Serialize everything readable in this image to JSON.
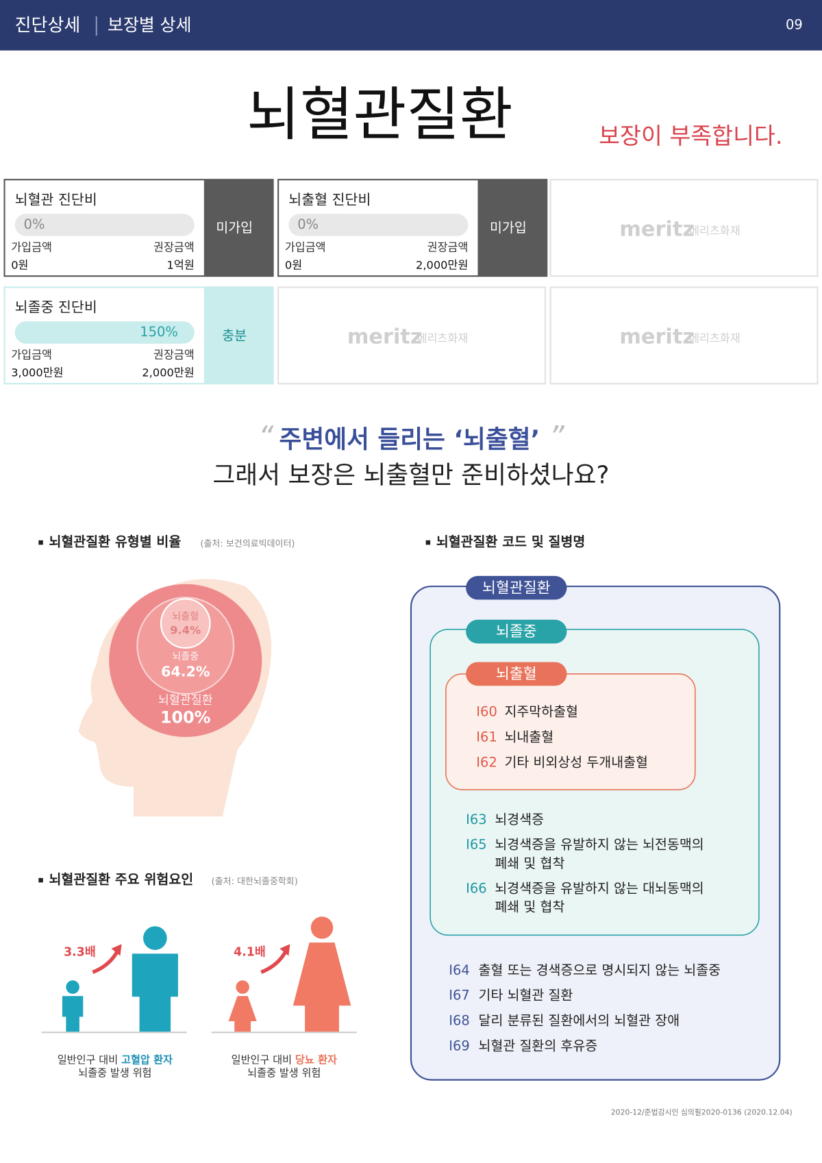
{
  "header": {
    "section": "진단상세",
    "subsection": "보장별 상세",
    "page": "09"
  },
  "title": "뇌혈관질환",
  "status": "보장이 부족합니다.",
  "brand": {
    "name": "meritz",
    "sub": "메리츠화재"
  },
  "cards": [
    {
      "name": "뇌혈관 진단비",
      "percent": "0%",
      "joined_label": "가입금액",
      "recommended_label": "권장금액",
      "joined": "0원",
      "recommended": "1억원",
      "badge": "미가입"
    },
    {
      "name": "뇌출혈 진단비",
      "percent": "0%",
      "joined_label": "가입금액",
      "recommended_label": "권장금액",
      "joined": "0원",
      "recommended": "2,000만원",
      "badge": "미가입"
    },
    {
      "name": "뇌졸중 진단비",
      "percent": "150%",
      "joined_label": "가입금액",
      "recommended_label": "권장금액",
      "joined": "3,000만원",
      "recommended": "2,000만원",
      "badge": "충분"
    }
  ],
  "quote": {
    "line1": "주변에서 들리는 ‘뇌출혈’",
    "line2": "그래서 보장은 뇌출혈만 준비하셨나요?"
  },
  "ratio": {
    "title": "뇌혈관질환 유형별 비율",
    "source": "(출처: 보건의료빅데이터)",
    "items": [
      {
        "name": "뇌출혈",
        "value": "9.4%"
      },
      {
        "name": "뇌졸중",
        "value": "64.2%"
      },
      {
        "name": "뇌혈관질환",
        "value": "100%"
      }
    ]
  },
  "risk": {
    "title": "뇌혈관질환 주요 위험요인",
    "source": "(출처: 대한뇌졸중학회)",
    "items": [
      {
        "multiplier": "3.3배",
        "prefix": "일반인구 대비 ",
        "highlight": "고혈압 환자",
        "line2": "뇌졸중 발생 위험"
      },
      {
        "multiplier": "4.1배",
        "prefix": "일반인구 대비 ",
        "highlight": "당뇨 환자",
        "line2": "뇌졸중 발생 위험"
      }
    ]
  },
  "codes": {
    "title": "뇌혈관질환 코드 및 질병명",
    "outer": {
      "label": "뇌혈관질환",
      "items": [
        {
          "code": "I64",
          "name": [
            "출혈 또는 경색증으로 명시되지 않는 뇌졸중"
          ]
        },
        {
          "code": "I67",
          "name": [
            "기타 뇌혈관 질환"
          ]
        },
        {
          "code": "I68",
          "name": [
            "달리 분류된 질환에서의 뇌혈관 장애"
          ]
        },
        {
          "code": "I69",
          "name": [
            "뇌혈관 질환의 후유증"
          ]
        }
      ]
    },
    "middle": {
      "label": "뇌졸중",
      "items": [
        {
          "code": "I63",
          "name": [
            "뇌경색증"
          ]
        },
        {
          "code": "I65",
          "name": [
            "뇌경색증을 유발하지 않는 뇌전동맥의",
            "폐쇄 및 협착"
          ]
        },
        {
          "code": "I66",
          "name": [
            "뇌경색증을 유발하지 않는 대뇌동맥의",
            "폐쇄 및 협착"
          ]
        }
      ]
    },
    "inner": {
      "label": "뇌출혈",
      "items": [
        {
          "code": "I60",
          "name": [
            "지주막하출혈"
          ]
        },
        {
          "code": "I61",
          "name": [
            "뇌내출혈"
          ]
        },
        {
          "code": "I62",
          "name": [
            "기타 비외상성 두개내출혈"
          ]
        }
      ]
    }
  },
  "footer": "2020-12/준법감시인 심의필2020-0136 (2020.12.04)"
}
